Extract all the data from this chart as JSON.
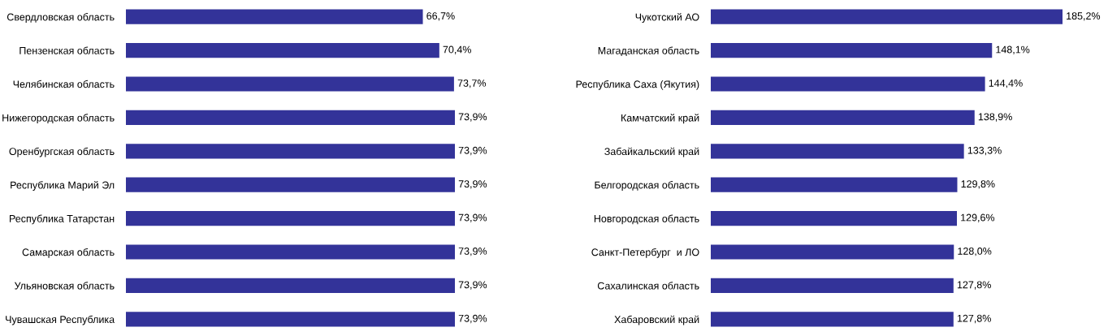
{
  "chart_data": [
    {
      "type": "bar",
      "orientation": "horizontal",
      "categories": [
        "Свердловская область",
        "Пензенская область",
        "Челябинская область",
        "Нижегородская область",
        "Оренбургская область",
        "Республика Марий Эл",
        "Республика Татарстан",
        "Самарская область",
        "Ульяновская область",
        "Чувашская Республика"
      ],
      "values": [
        66.7,
        70.4,
        73.7,
        73.9,
        73.9,
        73.9,
        73.9,
        73.9,
        73.9,
        73.9
      ],
      "value_labels": [
        "66,7%",
        "70,4%",
        "73,7%",
        "73,9%",
        "73,9%",
        "73,9%",
        "73,9%",
        "73,9%",
        "73,9%",
        "73,9%"
      ],
      "color": "#333399",
      "tick_labels": "y",
      "grid": false,
      "legend": false
    },
    {
      "type": "bar",
      "orientation": "horizontal",
      "categories": [
        "Чукотский АО",
        "Магаданская область",
        "Республика Саха (Якутия)",
        "Камчатский край",
        "Забайкальский край",
        "Белгородская область",
        "Новгородская область",
        "Санкт-Петербург  и ЛО",
        "Сахалинская область",
        "Хабаровский край"
      ],
      "values": [
        185.2,
        148.1,
        144.4,
        138.9,
        133.3,
        129.8,
        129.6,
        128.0,
        127.8,
        127.8
      ],
      "value_labels": [
        "185,2%",
        "148,1%",
        "144,4%",
        "138,9%",
        "133,3%",
        "129,8%",
        "129,6%",
        "128,0%",
        "127,8%",
        "127,8%"
      ],
      "color": "#333399",
      "tick_labels": "y",
      "grid": false,
      "legend": false
    }
  ]
}
